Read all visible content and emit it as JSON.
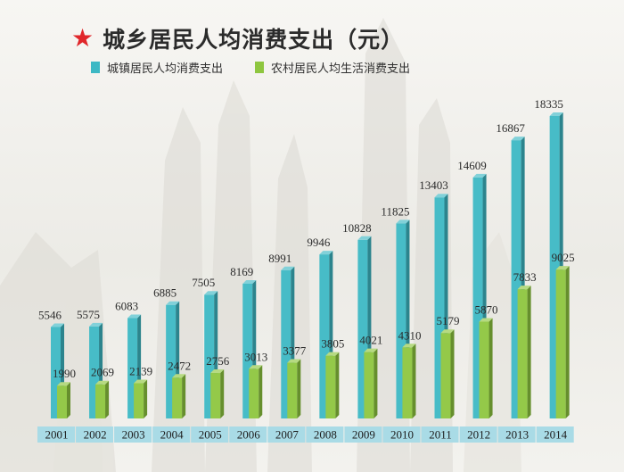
{
  "header": {
    "title": "城乡居民人均消费支出（元）",
    "star_icon": "★"
  },
  "chart_data": {
    "type": "bar",
    "title": "城乡居民人均消费支出（元）",
    "categories": [
      "2001",
      "2002",
      "2003",
      "2004",
      "2005",
      "2006",
      "2007",
      "2008",
      "2009",
      "2010",
      "2011",
      "2012",
      "2013",
      "2014"
    ],
    "series": [
      {
        "name": "城镇居民人均消费支出",
        "color": "#3db8c4",
        "values": [
          5546,
          5575,
          6083,
          6885,
          7505,
          8169,
          8991,
          9946,
          10828,
          11825,
          13403,
          14609,
          16867,
          18335
        ]
      },
      {
        "name": "农村居民人均生活消费支出",
        "color": "#8ec63f",
        "values": [
          1990,
          2069,
          2139,
          2472,
          2756,
          3013,
          3377,
          3805,
          4021,
          4310,
          5179,
          5870,
          7833,
          9025
        ]
      }
    ],
    "xlabel": "",
    "ylabel": "",
    "ylim": [
      0,
      18335
    ],
    "grid": false,
    "legend": "top-left",
    "axis_strip_color": "#a9dbe6"
  }
}
